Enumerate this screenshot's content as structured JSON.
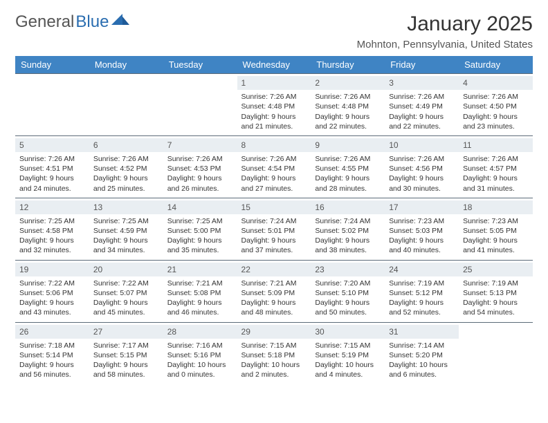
{
  "logo": {
    "text1": "General",
    "text2": "Blue"
  },
  "title": "January 2025",
  "location": "Mohnton, Pennsylvania, United States",
  "header_bg": "#3f84c4",
  "daynum_bg": "#e9eef2",
  "rule_color": "#5a6a78",
  "day_headers": [
    "Sunday",
    "Monday",
    "Tuesday",
    "Wednesday",
    "Thursday",
    "Friday",
    "Saturday"
  ],
  "weeks": [
    [
      {
        "n": "",
        "sr": "",
        "ss": "",
        "dl": ""
      },
      {
        "n": "",
        "sr": "",
        "ss": "",
        "dl": ""
      },
      {
        "n": "",
        "sr": "",
        "ss": "",
        "dl": ""
      },
      {
        "n": "1",
        "sr": "7:26 AM",
        "ss": "4:48 PM",
        "dl": "9 hours and 21 minutes."
      },
      {
        "n": "2",
        "sr": "7:26 AM",
        "ss": "4:48 PM",
        "dl": "9 hours and 22 minutes."
      },
      {
        "n": "3",
        "sr": "7:26 AM",
        "ss": "4:49 PM",
        "dl": "9 hours and 22 minutes."
      },
      {
        "n": "4",
        "sr": "7:26 AM",
        "ss": "4:50 PM",
        "dl": "9 hours and 23 minutes."
      }
    ],
    [
      {
        "n": "5",
        "sr": "7:26 AM",
        "ss": "4:51 PM",
        "dl": "9 hours and 24 minutes."
      },
      {
        "n": "6",
        "sr": "7:26 AM",
        "ss": "4:52 PM",
        "dl": "9 hours and 25 minutes."
      },
      {
        "n": "7",
        "sr": "7:26 AM",
        "ss": "4:53 PM",
        "dl": "9 hours and 26 minutes."
      },
      {
        "n": "8",
        "sr": "7:26 AM",
        "ss": "4:54 PM",
        "dl": "9 hours and 27 minutes."
      },
      {
        "n": "9",
        "sr": "7:26 AM",
        "ss": "4:55 PM",
        "dl": "9 hours and 28 minutes."
      },
      {
        "n": "10",
        "sr": "7:26 AM",
        "ss": "4:56 PM",
        "dl": "9 hours and 30 minutes."
      },
      {
        "n": "11",
        "sr": "7:26 AM",
        "ss": "4:57 PM",
        "dl": "9 hours and 31 minutes."
      }
    ],
    [
      {
        "n": "12",
        "sr": "7:25 AM",
        "ss": "4:58 PM",
        "dl": "9 hours and 32 minutes."
      },
      {
        "n": "13",
        "sr": "7:25 AM",
        "ss": "4:59 PM",
        "dl": "9 hours and 34 minutes."
      },
      {
        "n": "14",
        "sr": "7:25 AM",
        "ss": "5:00 PM",
        "dl": "9 hours and 35 minutes."
      },
      {
        "n": "15",
        "sr": "7:24 AM",
        "ss": "5:01 PM",
        "dl": "9 hours and 37 minutes."
      },
      {
        "n": "16",
        "sr": "7:24 AM",
        "ss": "5:02 PM",
        "dl": "9 hours and 38 minutes."
      },
      {
        "n": "17",
        "sr": "7:23 AM",
        "ss": "5:03 PM",
        "dl": "9 hours and 40 minutes."
      },
      {
        "n": "18",
        "sr": "7:23 AM",
        "ss": "5:05 PM",
        "dl": "9 hours and 41 minutes."
      }
    ],
    [
      {
        "n": "19",
        "sr": "7:22 AM",
        "ss": "5:06 PM",
        "dl": "9 hours and 43 minutes."
      },
      {
        "n": "20",
        "sr": "7:22 AM",
        "ss": "5:07 PM",
        "dl": "9 hours and 45 minutes."
      },
      {
        "n": "21",
        "sr": "7:21 AM",
        "ss": "5:08 PM",
        "dl": "9 hours and 46 minutes."
      },
      {
        "n": "22",
        "sr": "7:21 AM",
        "ss": "5:09 PM",
        "dl": "9 hours and 48 minutes."
      },
      {
        "n": "23",
        "sr": "7:20 AM",
        "ss": "5:10 PM",
        "dl": "9 hours and 50 minutes."
      },
      {
        "n": "24",
        "sr": "7:19 AM",
        "ss": "5:12 PM",
        "dl": "9 hours and 52 minutes."
      },
      {
        "n": "25",
        "sr": "7:19 AM",
        "ss": "5:13 PM",
        "dl": "9 hours and 54 minutes."
      }
    ],
    [
      {
        "n": "26",
        "sr": "7:18 AM",
        "ss": "5:14 PM",
        "dl": "9 hours and 56 minutes."
      },
      {
        "n": "27",
        "sr": "7:17 AM",
        "ss": "5:15 PM",
        "dl": "9 hours and 58 minutes."
      },
      {
        "n": "28",
        "sr": "7:16 AM",
        "ss": "5:16 PM",
        "dl": "10 hours and 0 minutes."
      },
      {
        "n": "29",
        "sr": "7:15 AM",
        "ss": "5:18 PM",
        "dl": "10 hours and 2 minutes."
      },
      {
        "n": "30",
        "sr": "7:15 AM",
        "ss": "5:19 PM",
        "dl": "10 hours and 4 minutes."
      },
      {
        "n": "31",
        "sr": "7:14 AM",
        "ss": "5:20 PM",
        "dl": "10 hours and 6 minutes."
      },
      {
        "n": "",
        "sr": "",
        "ss": "",
        "dl": ""
      }
    ]
  ],
  "labels": {
    "sunrise": "Sunrise: ",
    "sunset": "Sunset: ",
    "daylight": "Daylight: "
  }
}
